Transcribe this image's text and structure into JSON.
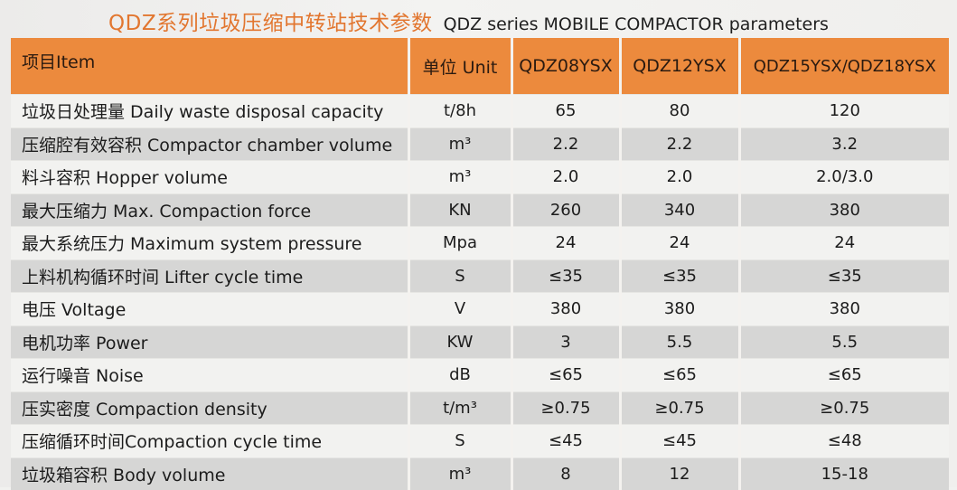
{
  "title": {
    "chinese": "QDZ系列垃圾压缩中转站技术参数",
    "english": "QDZ series MOBILE COMPACTOR parameters"
  },
  "table": {
    "headers": [
      "项目Item",
      "单位 Unit",
      "QDZ08YSX",
      "QDZ12YSX",
      "QDZ15YSX/QDZ18YSX"
    ],
    "rows": [
      {
        "item": "垃圾日处理量 Daily waste disposal capacity",
        "unit": "t/8h",
        "qdz08": "65",
        "qdz12": "80",
        "qdz15_18": "120"
      },
      {
        "item": "压缩腔有效容积 Compactor chamber volume",
        "unit": "m³",
        "qdz08": "2.2",
        "qdz12": "2.2",
        "qdz15_18": "3.2"
      },
      {
        "item": "料斗容积 Hopper volume",
        "unit": "m³",
        "qdz08": "2.0",
        "qdz12": "2.0",
        "qdz15_18": "2.0/3.0"
      },
      {
        "item": "最大压缩力 Max. Compaction force",
        "unit": "KN",
        "qdz08": "260",
        "qdz12": "340",
        "qdz15_18": "380"
      },
      {
        "item": "最大系统压力 Maximum system pressure",
        "unit": "Mpa",
        "qdz08": "24",
        "qdz12": "24",
        "qdz15_18": "24"
      },
      {
        "item": "上料机构循环时间 Lifter cycle time",
        "unit": "S",
        "qdz08": "≤35",
        "qdz12": "≤35",
        "qdz15_18": "≤35"
      },
      {
        "item": "电压 Voltage",
        "unit": "V",
        "qdz08": "380",
        "qdz12": "380",
        "qdz15_18": "380"
      },
      {
        "item": "电机功率 Power",
        "unit": "KW",
        "qdz08": "3",
        "qdz12": "5.5",
        "qdz15_18": "5.5"
      },
      {
        "item": "运行噪音 Noise",
        "unit": "dB",
        "qdz08": "≤65",
        "qdz12": "≤65",
        "qdz15_18": "≤65"
      },
      {
        "item": "压实密度  Compaction density",
        "unit": "t/m³",
        "qdz08": "≥0.75",
        "qdz12": "≥0.75",
        "qdz15_18": "≥0.75"
      },
      {
        "item": "压缩循环时间Compaction cycle time",
        "unit": "S",
        "qdz08": "≤45",
        "qdz12": "≤45",
        "qdz15_18": "≤48"
      },
      {
        "item": "垃圾箱容积 Body volume",
        "unit": "m³",
        "qdz08": "8",
        "qdz12": "12",
        "qdz15_18": "15-18"
      }
    ]
  },
  "colors": {
    "title_accent": "#e2762f",
    "header_bg": "#ec8a3d",
    "row_shade": "#d6d6d5",
    "row_plain": "#f2f2f0"
  }
}
